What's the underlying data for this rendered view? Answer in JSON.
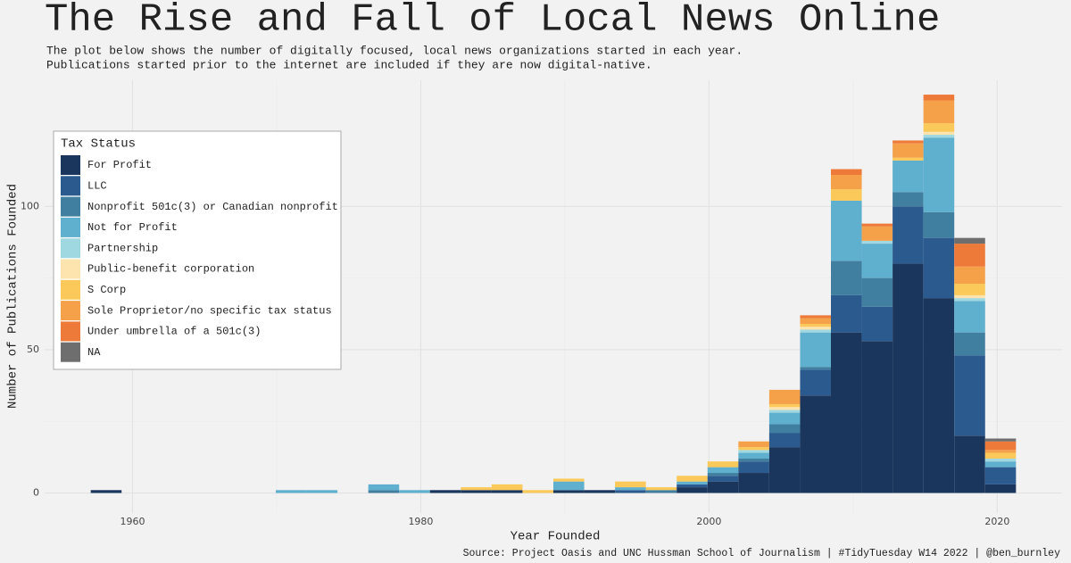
{
  "chart_data": {
    "type": "histogram",
    "title": "The Rise and Fall of Local News Online",
    "subtitle": [
      "The plot below shows the number of digitally focused, local news organizations started in each year.",
      "Publications started prior to the internet are included if they are now digital-native."
    ],
    "x_label": "Year Founded",
    "y_label": "Number of Publications Founded",
    "caption": "Source:  Project Oasis and UNC Hussman School of Journalism | #TidyTuesday W14 2022 | @ben_burnley",
    "legend_title": "Tax Status",
    "legend_position": "top-left",
    "grid": true,
    "xlim": [
      1953.9,
      2024.5
    ],
    "ylim": [
      -7,
      144
    ],
    "xticks": [
      1960,
      1980,
      2000,
      2020
    ],
    "yticks": [
      0,
      50,
      100
    ],
    "bins": [
      1957.1,
      1959.24,
      1961.38,
      1963.52,
      1965.66,
      1967.8,
      1969.94,
      1972.08,
      1974.22,
      1976.36,
      1978.5,
      1980.64,
      1982.78,
      1984.92,
      1987.06,
      1989.2,
      1991.34,
      1993.48,
      1995.62,
      1997.76,
      1999.9,
      2002.04,
      2004.18,
      2006.32,
      2008.46,
      2010.6,
      2012.74,
      2014.88,
      2017.02,
      2019.16,
      2021.3
    ],
    "series": [
      {
        "name": "For Profit",
        "color": "#1b365d",
        "values": [
          1,
          0,
          0,
          0,
          0,
          0,
          0,
          0,
          0,
          0,
          0,
          1,
          1,
          1,
          0,
          1,
          1,
          0,
          0,
          2,
          4,
          7,
          16,
          34,
          56,
          53,
          80,
          68,
          20,
          3
        ]
      },
      {
        "name": "LLC",
        "color": "#2b5a8e",
        "values": [
          0,
          0,
          0,
          0,
          0,
          0,
          0,
          0,
          0,
          0,
          0,
          0,
          0,
          0,
          0,
          0,
          0,
          1,
          0,
          1,
          2,
          4,
          5,
          9,
          13,
          12,
          20,
          21,
          28,
          6
        ]
      },
      {
        "name": "Nonprofit 501c(3) or Canadian nonprofit",
        "color": "#417fa1",
        "values": [
          0,
          0,
          0,
          0,
          0,
          0,
          0,
          0,
          0,
          1,
          0,
          0,
          0,
          0,
          0,
          0,
          0,
          0,
          1,
          0,
          1,
          1,
          3,
          1,
          12,
          10,
          5,
          9,
          8,
          0
        ]
      },
      {
        "name": "Not for Profit",
        "color": "#5fafce",
        "values": [
          0,
          0,
          0,
          0,
          0,
          0,
          1,
          1,
          0,
          2,
          1,
          0,
          0,
          0,
          0,
          3,
          0,
          1,
          0,
          1,
          2,
          2,
          4,
          12,
          21,
          12,
          11,
          26,
          11,
          2
        ]
      },
      {
        "name": "Partnership",
        "color": "#9fd8e0",
        "values": [
          0,
          0,
          0,
          0,
          0,
          0,
          0,
          0,
          0,
          0,
          0,
          0,
          0,
          0,
          0,
          0,
          0,
          0,
          0,
          0,
          0,
          1,
          1,
          1,
          0,
          1,
          0,
          1,
          1,
          1
        ]
      },
      {
        "name": "Public-benefit corporation",
        "color": "#fde3ad",
        "values": [
          0,
          0,
          0,
          0,
          0,
          0,
          0,
          0,
          0,
          0,
          0,
          0,
          0,
          0,
          0,
          0,
          0,
          0,
          0,
          0,
          0,
          0,
          1,
          1,
          0,
          0,
          0,
          1,
          1,
          0
        ]
      },
      {
        "name": "S Corp",
        "color": "#fbc95a",
        "values": [
          0,
          0,
          0,
          0,
          0,
          0,
          0,
          0,
          0,
          0,
          0,
          0,
          1,
          2,
          1,
          1,
          0,
          2,
          1,
          2,
          2,
          1,
          1,
          1,
          4,
          0,
          1,
          3,
          4,
          2
        ]
      },
      {
        "name": "Sole Proprietor/no specific tax status",
        "color": "#f5a14a",
        "values": [
          0,
          0,
          0,
          0,
          0,
          0,
          0,
          0,
          0,
          0,
          0,
          0,
          0,
          0,
          0,
          0,
          0,
          0,
          0,
          0,
          0,
          2,
          5,
          2,
          5,
          5,
          5,
          8,
          6,
          1
        ]
      },
      {
        "name": "Under umbrella of a 501c(3)",
        "color": "#ee7a3a",
        "values": [
          0,
          0,
          0,
          0,
          0,
          0,
          0,
          0,
          0,
          0,
          0,
          0,
          0,
          0,
          0,
          0,
          0,
          0,
          0,
          0,
          0,
          0,
          0,
          1,
          2,
          1,
          1,
          2,
          8,
          3
        ]
      },
      {
        "name": "NA",
        "color": "#6e6e6e",
        "values": [
          0,
          0,
          0,
          0,
          0,
          0,
          0,
          0,
          0,
          0,
          0,
          0,
          0,
          0,
          0,
          0,
          0,
          0,
          0,
          0,
          0,
          0,
          0,
          0,
          0,
          0,
          0,
          0,
          2,
          1
        ]
      }
    ]
  }
}
